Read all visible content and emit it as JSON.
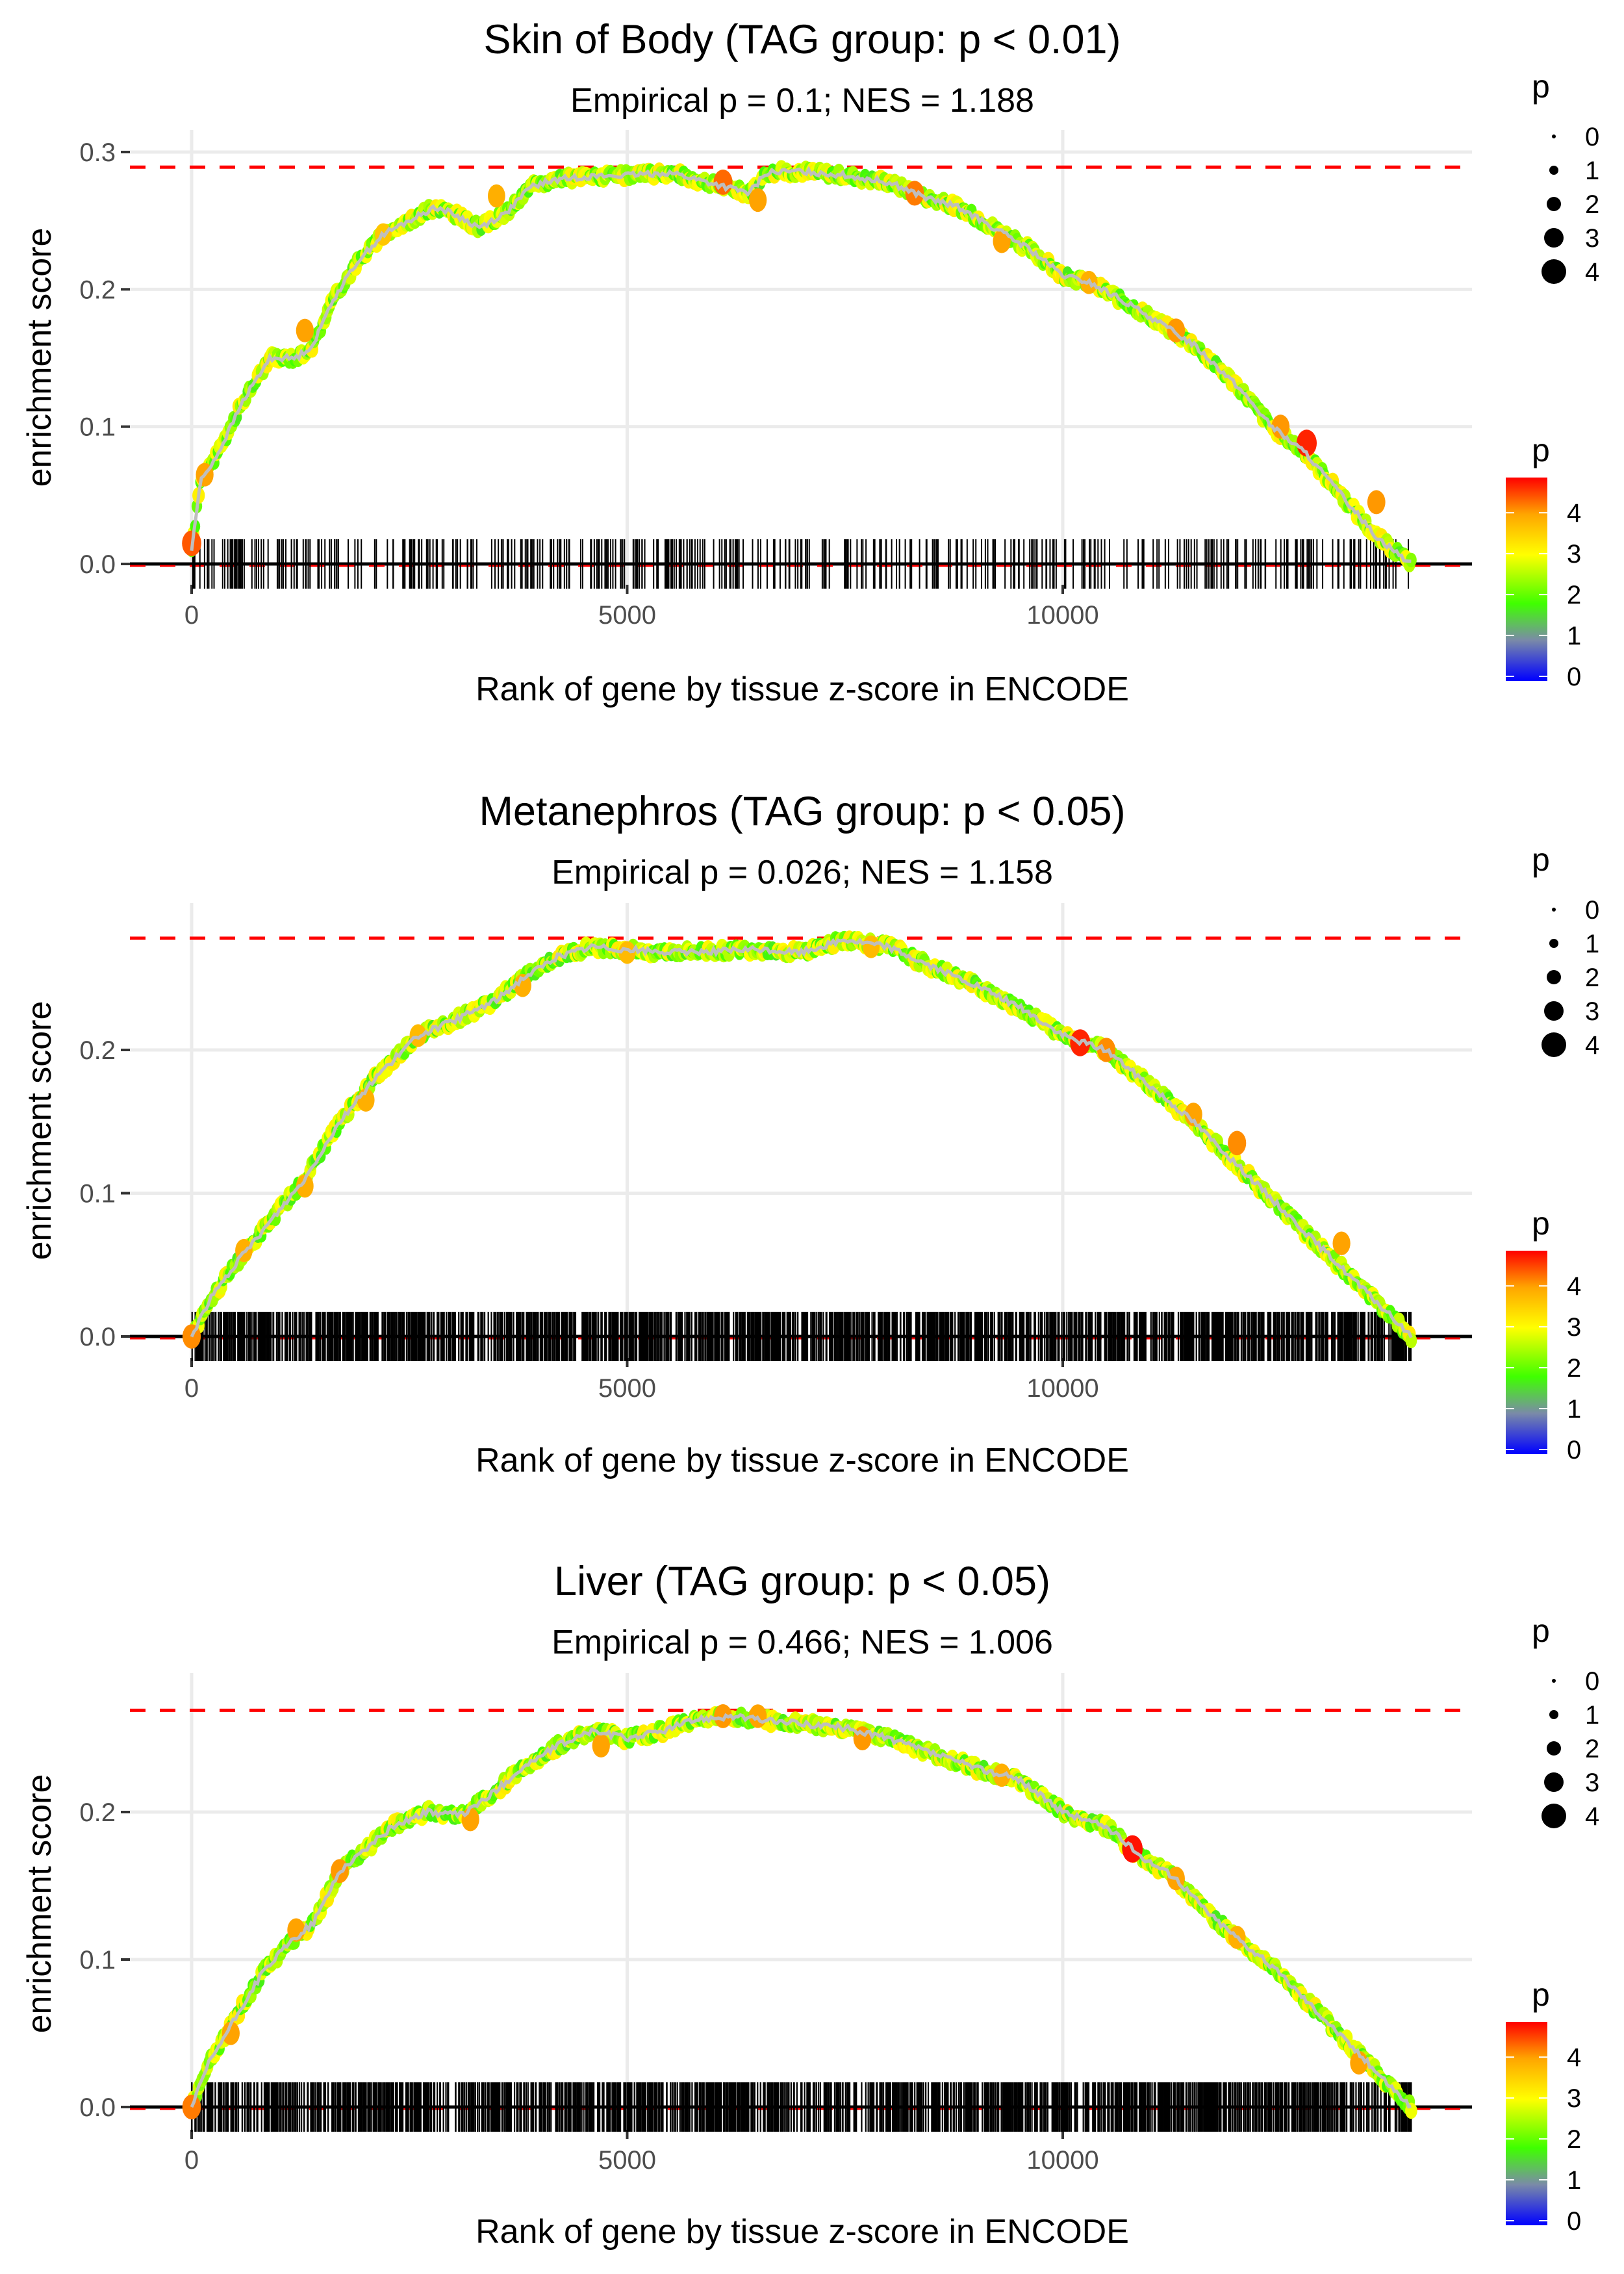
{
  "chart_data": [
    {
      "type": "line",
      "title": "Skin of Body (TAG group: p < 0.01)",
      "subtitle": "Empirical p = 0.1; NES = 1.188",
      "xlabel": "Rank of gene by tissue z-score in ENCODE",
      "ylabel": "enrichment score",
      "xlim": [
        -700,
        14700
      ],
      "ylim": [
        -0.005,
        0.3
      ],
      "xticks": [
        0,
        5000,
        10000
      ],
      "xtick_labels": [
        "0",
        "5000",
        "10000"
      ],
      "yticks": [
        0.0,
        0.1,
        0.2,
        0.3
      ],
      "ytick_labels": [
        "0.0",
        "0.1",
        "0.2",
        "0.3"
      ],
      "max_es_line": 0.289,
      "grid": true,
      "rug_density": "sparse",
      "rug_count": 420,
      "series": [
        {
          "name": "running enrichment score",
          "x": [
            0,
            100,
            300,
            600,
            900,
            1200,
            1400,
            1600,
            1900,
            2200,
            2500,
            2800,
            3000,
            3300,
            3600,
            3900,
            4200,
            4500,
            5000,
            5500,
            5800,
            6100,
            6400,
            6600,
            7000,
            7500,
            8000,
            8500,
            8800,
            9200,
            9600,
            10000,
            10300,
            10600,
            11000,
            11500,
            12000,
            12400,
            12800,
            13200,
            13600,
            14000
          ],
          "y": [
            0.01,
            0.06,
            0.08,
            0.12,
            0.15,
            0.15,
            0.16,
            0.19,
            0.22,
            0.24,
            0.25,
            0.26,
            0.255,
            0.245,
            0.255,
            0.275,
            0.28,
            0.282,
            0.283,
            0.285,
            0.28,
            0.275,
            0.27,
            0.285,
            0.286,
            0.283,
            0.278,
            0.265,
            0.26,
            0.245,
            0.23,
            0.21,
            0.205,
            0.195,
            0.18,
            0.16,
            0.13,
            0.1,
            0.08,
            0.05,
            0.02,
            0.0
          ]
        }
      ],
      "highlight_points": [
        {
          "x": 0,
          "y": 0.015,
          "p": 4.3
        },
        {
          "x": 150,
          "y": 0.065,
          "p": 3.8
        },
        {
          "x": 1300,
          "y": 0.17,
          "p": 3.8
        },
        {
          "x": 2200,
          "y": 0.24,
          "p": 3.5
        },
        {
          "x": 3500,
          "y": 0.268,
          "p": 3.7
        },
        {
          "x": 6100,
          "y": 0.278,
          "p": 4.2
        },
        {
          "x": 6500,
          "y": 0.265,
          "p": 3.8
        },
        {
          "x": 8300,
          "y": 0.27,
          "p": 4.1
        },
        {
          "x": 9300,
          "y": 0.235,
          "p": 3.8
        },
        {
          "x": 10300,
          "y": 0.205,
          "p": 3.7
        },
        {
          "x": 11300,
          "y": 0.17,
          "p": 3.9
        },
        {
          "x": 12500,
          "y": 0.1,
          "p": 3.9
        },
        {
          "x": 12800,
          "y": 0.088,
          "p": 4.6
        },
        {
          "x": 13600,
          "y": 0.045,
          "p": 3.9
        }
      ]
    },
    {
      "type": "line",
      "title": "Metanephros (TAG group: p < 0.05)",
      "subtitle": "Empirical p = 0.026; NES = 1.158",
      "xlabel": "Rank of gene by tissue z-score in ENCODE",
      "ylabel": "enrichment score",
      "xlim": [
        -700,
        14700
      ],
      "ylim": [
        -0.005,
        0.285
      ],
      "xticks": [
        0,
        5000,
        10000
      ],
      "xtick_labels": [
        "0",
        "5000",
        "10000"
      ],
      "yticks": [
        0.0,
        0.1,
        0.2
      ],
      "ytick_labels": [
        "0.0",
        "0.1",
        "0.2"
      ],
      "max_es_line": 0.278,
      "grid": true,
      "rug_density": "dense",
      "rug_count": 1400,
      "series": [
        {
          "name": "running enrichment score",
          "x": [
            0,
            200,
            500,
            900,
            1300,
            1700,
            2100,
            2600,
            3000,
            3500,
            3800,
            4200,
            4600,
            5000,
            5500,
            6000,
            6500,
            7000,
            7500,
            8000,
            8500,
            9000,
            9500,
            10000,
            10500,
            11000,
            11500,
            12000,
            12500,
            13000,
            13500,
            14000
          ],
          "y": [
            0.0,
            0.025,
            0.05,
            0.08,
            0.11,
            0.15,
            0.18,
            0.21,
            0.22,
            0.235,
            0.25,
            0.265,
            0.272,
            0.27,
            0.268,
            0.269,
            0.27,
            0.268,
            0.277,
            0.272,
            0.258,
            0.245,
            0.23,
            0.21,
            0.2,
            0.175,
            0.15,
            0.12,
            0.09,
            0.06,
            0.03,
            0.0
          ]
        }
      ],
      "highlight_points": [
        {
          "x": 0,
          "y": 0.0,
          "p": 4.0
        },
        {
          "x": 600,
          "y": 0.06,
          "p": 3.7
        },
        {
          "x": 1300,
          "y": 0.105,
          "p": 3.7
        },
        {
          "x": 2000,
          "y": 0.165,
          "p": 3.7
        },
        {
          "x": 2600,
          "y": 0.21,
          "p": 3.6
        },
        {
          "x": 3800,
          "y": 0.245,
          "p": 3.7
        },
        {
          "x": 5000,
          "y": 0.268,
          "p": 3.6
        },
        {
          "x": 7800,
          "y": 0.272,
          "p": 3.6
        },
        {
          "x": 10200,
          "y": 0.205,
          "p": 4.6
        },
        {
          "x": 10500,
          "y": 0.2,
          "p": 4.0
        },
        {
          "x": 11500,
          "y": 0.155,
          "p": 3.8
        },
        {
          "x": 12000,
          "y": 0.135,
          "p": 4.0
        },
        {
          "x": 13200,
          "y": 0.065,
          "p": 3.8
        }
      ]
    },
    {
      "type": "line",
      "title": "Liver (TAG group: p < 0.05)",
      "subtitle": "Empirical p = 0.466; NES = 1.006",
      "xlabel": "Rank of gene by tissue z-score in ENCODE",
      "ylabel": "enrichment score",
      "xlim": [
        -700,
        14700
      ],
      "ylim": [
        -0.005,
        0.275
      ],
      "xticks": [
        0,
        5000,
        10000
      ],
      "xtick_labels": [
        "0",
        "5000",
        "10000"
      ],
      "yticks": [
        0.0,
        0.1,
        0.2
      ],
      "ytick_labels": [
        "0.0",
        "0.1",
        "0.2"
      ],
      "max_es_line": 0.269,
      "grid": true,
      "rug_density": "dense",
      "rug_count": 1300,
      "series": [
        {
          "name": "running enrichment score",
          "x": [
            0,
            200,
            500,
            800,
            1100,
            1400,
            1700,
            2000,
            2300,
            2700,
            3100,
            3400,
            3800,
            4200,
            4600,
            5000,
            5400,
            5800,
            6200,
            6600,
            7000,
            7500,
            8000,
            8500,
            9000,
            9500,
            10000,
            10500,
            10900,
            11300,
            11700,
            12100,
            12500,
            13000,
            13500,
            14000
          ],
          "y": [
            0.0,
            0.03,
            0.06,
            0.09,
            0.11,
            0.125,
            0.16,
            0.175,
            0.19,
            0.2,
            0.198,
            0.21,
            0.23,
            0.245,
            0.255,
            0.25,
            0.255,
            0.263,
            0.265,
            0.262,
            0.26,
            0.257,
            0.25,
            0.24,
            0.23,
            0.222,
            0.2,
            0.19,
            0.17,
            0.155,
            0.13,
            0.11,
            0.09,
            0.06,
            0.03,
            0.0
          ]
        }
      ],
      "highlight_points": [
        {
          "x": 0,
          "y": 0.0,
          "p": 4.1
        },
        {
          "x": 450,
          "y": 0.05,
          "p": 3.8
        },
        {
          "x": 1200,
          "y": 0.12,
          "p": 3.8
        },
        {
          "x": 1700,
          "y": 0.16,
          "p": 3.9
        },
        {
          "x": 3200,
          "y": 0.195,
          "p": 3.8
        },
        {
          "x": 4700,
          "y": 0.245,
          "p": 3.8
        },
        {
          "x": 6100,
          "y": 0.265,
          "p": 3.9
        },
        {
          "x": 6500,
          "y": 0.265,
          "p": 3.8
        },
        {
          "x": 7700,
          "y": 0.25,
          "p": 3.9
        },
        {
          "x": 9300,
          "y": 0.225,
          "p": 3.7
        },
        {
          "x": 10800,
          "y": 0.175,
          "p": 4.7
        },
        {
          "x": 11300,
          "y": 0.155,
          "p": 3.8
        },
        {
          "x": 12000,
          "y": 0.115,
          "p": 3.7
        },
        {
          "x": 13400,
          "y": 0.03,
          "p": 3.8
        }
      ]
    }
  ],
  "legends": [
    {
      "size_title": "p",
      "size_labels": [
        "0",
        "1",
        "2",
        "3",
        "4"
      ],
      "color_title": "p",
      "color_labels": [
        "4",
        "3",
        "2",
        "1",
        "0"
      ]
    },
    {
      "size_title": "p",
      "size_labels": [
        "0",
        "1",
        "2",
        "3",
        "4"
      ],
      "color_title": "p",
      "color_labels": [
        "4",
        "3",
        "2",
        "1",
        "0"
      ]
    },
    {
      "size_title": "p",
      "size_labels": [
        "0",
        "1",
        "2",
        "3",
        "4"
      ],
      "color_title": "p",
      "color_labels": [
        "4",
        "3",
        "2",
        "1",
        "0"
      ]
    }
  ],
  "colors": {
    "max_es_line": "#ff0000",
    "es_line": "#bebebe",
    "rug": "#000000",
    "grid": "#ebebeb",
    "gradient": [
      "#0000ff",
      "#7f7fa8",
      "#44ff00",
      "#ffff00",
      "#ffa500",
      "#ff0000"
    ]
  }
}
